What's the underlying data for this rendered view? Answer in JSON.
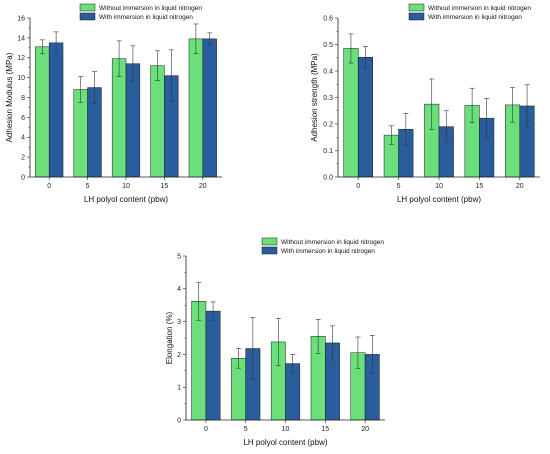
{
  "colors": {
    "without": "#6be07a",
    "with": "#2a5d9e",
    "axis": "#222222",
    "error": "#333333"
  },
  "chart_data": [
    {
      "type": "bar",
      "xlabel": "LH polyol content (pbw)",
      "ylabel": "Adhesion Modulus (MPa)",
      "categories": [
        "0",
        "5",
        "10",
        "15",
        "20"
      ],
      "ylim": [
        0,
        16
      ],
      "yticks": [
        "0",
        "2",
        "4",
        "6",
        "8",
        "10",
        "12",
        "14",
        "16"
      ],
      "legend": "top-center",
      "series": [
        {
          "name": "Without immersion in liquid nitrogen",
          "values": [
            13.1,
            8.8,
            11.9,
            11.2,
            13.9
          ],
          "errors": [
            0.7,
            1.3,
            1.8,
            1.5,
            1.5
          ]
        },
        {
          "name": "With immersion in liquid nitrogen",
          "values": [
            13.5,
            9.0,
            11.4,
            10.2,
            13.9
          ],
          "errors": [
            1.1,
            1.6,
            1.8,
            2.6,
            0.6
          ]
        }
      ]
    },
    {
      "type": "bar",
      "xlabel": "LH polyol content (pbw)",
      "ylabel": "Adhesion strength (MPa)",
      "categories": [
        "0",
        "5",
        "10",
        "15",
        "20"
      ],
      "ylim": [
        0,
        0.6
      ],
      "yticks": [
        "0.0",
        "0.1",
        "0.2",
        "0.3",
        "0.4",
        "0.5",
        "0.6"
      ],
      "legend": "top-right",
      "series": [
        {
          "name": "Without immersion in liquid nitrogen",
          "values": [
            0.485,
            0.158,
            0.275,
            0.27,
            0.272
          ],
          "errors": [
            0.055,
            0.035,
            0.095,
            0.065,
            0.065
          ]
        },
        {
          "name": "With immersion in liquid nitrogen",
          "values": [
            0.452,
            0.18,
            0.19,
            0.222,
            0.268
          ],
          "errors": [
            0.04,
            0.06,
            0.06,
            0.075,
            0.08
          ]
        }
      ]
    },
    {
      "type": "bar",
      "xlabel": "LH polyol content (pbw)",
      "ylabel": "Elongation (%)",
      "categories": [
        "0",
        "5",
        "10",
        "15",
        "20"
      ],
      "ylim": [
        0,
        5
      ],
      "yticks": [
        "0",
        "1",
        "2",
        "3",
        "4",
        "5"
      ],
      "legend": "top-center",
      "series": [
        {
          "name": "Without immersion in liquid nitrogen",
          "values": [
            3.62,
            1.88,
            2.38,
            2.55,
            2.05
          ],
          "errors": [
            0.58,
            0.3,
            0.72,
            0.52,
            0.48
          ]
        },
        {
          "name": "With immersion in liquid nitrogen",
          "values": [
            3.32,
            2.18,
            1.72,
            2.35,
            2.0
          ],
          "errors": [
            0.28,
            0.95,
            0.28,
            0.52,
            0.58
          ]
        }
      ]
    }
  ]
}
